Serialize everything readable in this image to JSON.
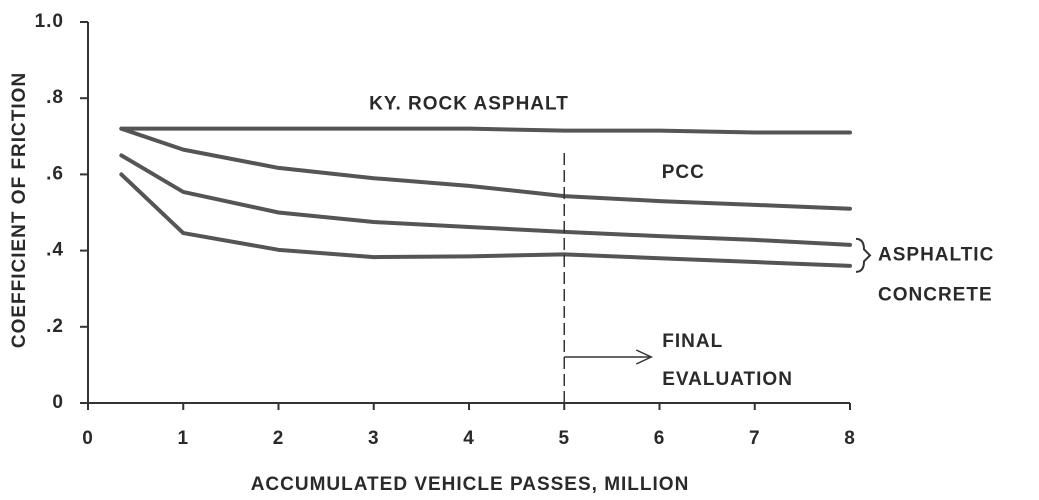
{
  "chart_data": {
    "type": "line",
    "x_label": "ACCUMULATED VEHICLE PASSES, MILLION",
    "y_label": "COEFFICIENT OF FRICTION",
    "x": [
      0.35,
      1,
      2,
      3,
      4,
      5,
      6,
      7,
      8
    ],
    "series": [
      {
        "name": "KY. ROCK ASPHALT",
        "color": "#555555",
        "values": [
          0.72,
          0.72,
          0.72,
          0.72,
          0.72,
          0.715,
          0.715,
          0.71,
          0.71
        ]
      },
      {
        "name": "PCC",
        "color": "#555555",
        "values": [
          0.72,
          0.665,
          0.617,
          0.59,
          0.57,
          0.543,
          0.53,
          0.52,
          0.51
        ]
      },
      {
        "color": "#555555",
        "values": [
          0.65,
          0.554,
          0.5,
          0.475,
          0.462,
          0.449,
          0.438,
          0.428,
          0.415
        ]
      },
      {
        "color": "#555555",
        "values": [
          0.6,
          0.446,
          0.402,
          0.383,
          0.385,
          0.39,
          0.38,
          0.37,
          0.36
        ]
      }
    ],
    "group_label": [
      "ASPHALTIC",
      "CONCRETE"
    ],
    "vline": 5,
    "vline_label": [
      "FINAL",
      "EVALUATION"
    ],
    "xlim": [
      0,
      8
    ],
    "xticks": [
      0,
      1,
      2,
      3,
      4,
      5,
      6,
      7,
      8
    ],
    "ylim": [
      0,
      1
    ],
    "yticks": [
      0,
      {
        "value": 0.2,
        "label": ".2"
      },
      {
        "value": 0.4,
        "label": ".4"
      },
      {
        "value": 0.6,
        "label": ".6"
      },
      {
        "value": 0.8,
        "label": ".8"
      },
      {
        "value": 1,
        "label": "1.0"
      }
    ],
    "grid": false
  }
}
